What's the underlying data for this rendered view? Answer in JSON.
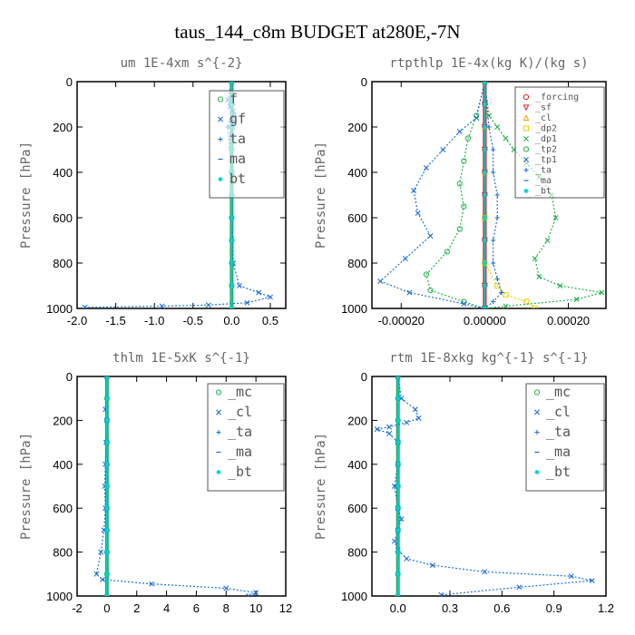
{
  "figure": {
    "title": "taus_144_c8m  BUDGET at280E,-7N",
    "colors": {
      "frame": "#000000",
      "axis_text": "#666666",
      "legend_border": "#555555",
      "green": "#22b14c",
      "blue": "#1f6fd6",
      "cyan": "#00d4d4",
      "black": "#000000",
      "red": "#e02020",
      "orange": "#f0a000",
      "yellow": "#e8d000"
    }
  },
  "chart_data": [
    {
      "type": "line",
      "title": "um  1E-4xm s^{-2}",
      "ylabel": "Pressure [hPa]",
      "xlim": [
        -2,
        0.7
      ],
      "ylim": [
        1000,
        0
      ],
      "xticks": [
        -2,
        -1.5,
        -1,
        -0.5,
        0,
        0.5
      ],
      "xtick_labels": [
        "-2.0",
        "-1.5",
        "-1.0",
        "-0.5",
        "0.0",
        "0.5"
      ],
      "yticks": [
        0,
        200,
        400,
        600,
        800,
        1000
      ],
      "ytick_labels": [
        "0",
        "200",
        "400",
        "600",
        "800",
        "1000"
      ],
      "legend": [
        "_f",
        "_gf",
        "_ta",
        "_ma",
        "_bt"
      ],
      "legend_display": [
        "f",
        "gf",
        "ta",
        "ma",
        "bt"
      ],
      "legend_placement": "top-right",
      "series": [
        {
          "name": "_f",
          "color": "green",
          "marker": "o",
          "x": [
            0,
            0,
            0,
            0,
            0,
            0,
            0,
            0,
            0,
            0,
            0
          ],
          "y": [
            0,
            100,
            200,
            300,
            400,
            500,
            600,
            700,
            800,
            900,
            1000
          ]
        },
        {
          "name": "_gf",
          "color": "blue",
          "marker": "x",
          "x": [
            0,
            -0.05,
            -0.02,
            0.02,
            0.03,
            0.02,
            0.01,
            0,
            0,
            0.02,
            0.1,
            0.35,
            0.5,
            0.2,
            -0.3,
            -0.9,
            -1.9
          ],
          "y": [
            0,
            80,
            110,
            130,
            150,
            175,
            200,
            240,
            400,
            800,
            900,
            930,
            950,
            975,
            985,
            990,
            995
          ]
        },
        {
          "name": "_ta",
          "color": "blue",
          "marker": "+",
          "x": [
            0,
            0.02,
            -0.05,
            0,
            0,
            0,
            0
          ],
          "y": [
            0,
            100,
            200,
            400,
            600,
            800,
            1000
          ]
        },
        {
          "name": "_ma",
          "color": "blue",
          "marker": "-",
          "x": [
            0,
            0,
            0,
            0,
            0,
            0
          ],
          "y": [
            0,
            200,
            400,
            600,
            800,
            1000
          ]
        },
        {
          "name": "_bt",
          "color": "cyan",
          "marker": "*",
          "x": [
            0,
            0,
            0,
            0,
            0,
            0,
            0,
            0,
            0,
            0,
            0
          ],
          "y": [
            0,
            100,
            200,
            300,
            400,
            500,
            600,
            700,
            800,
            900,
            1000
          ]
        }
      ]
    },
    {
      "type": "line",
      "title": "rtpthlp  1E-4x(kg K)/(kg s)",
      "ylabel": "Pressure [hPa]",
      "xlim": [
        -0.00027,
        0.00029
      ],
      "ylim": [
        1000,
        0
      ],
      "xticks": [
        -0.0002,
        0,
        0.0002
      ],
      "xtick_labels": [
        "-0.00020",
        "0.00000",
        "0.00020"
      ],
      "yticks": [
        0,
        200,
        400,
        600,
        800,
        1000
      ],
      "ytick_labels": [
        "0",
        "200",
        "400",
        "600",
        "800",
        "1000"
      ],
      "legend": [
        "_forcing",
        "_sf",
        "_cl",
        "_dp2",
        "_dp1",
        "_tp2",
        "_tp1",
        "_ta",
        "_ma",
        "_bt"
      ],
      "legend_placement": "top-right",
      "series": [
        {
          "name": "_forcing",
          "color": "red",
          "marker": "o",
          "x": [
            0,
            0,
            0,
            0,
            0,
            0,
            0,
            0,
            0,
            0,
            0
          ],
          "y": [
            0,
            100,
            200,
            300,
            400,
            500,
            600,
            700,
            800,
            900,
            1000
          ]
        },
        {
          "name": "_sf",
          "color": "red",
          "marker": "v",
          "x": [
            0,
            0,
            0,
            0,
            0,
            0,
            0,
            0,
            0,
            0,
            0
          ],
          "y": [
            0,
            100,
            200,
            300,
            400,
            500,
            600,
            700,
            800,
            900,
            1000
          ]
        },
        {
          "name": "_cl",
          "color": "orange",
          "marker": "^",
          "x": [
            0,
            0,
            0,
            0,
            0,
            0
          ],
          "y": [
            0,
            200,
            400,
            600,
            800,
            1000
          ]
        },
        {
          "name": "_dp2",
          "color": "yellow",
          "marker": "s",
          "x": [
            0,
            0,
            0,
            3e-05,
            5e-05,
            0.0001,
            0.00012
          ],
          "y": [
            0,
            600,
            800,
            900,
            940,
            970,
            1000
          ]
        },
        {
          "name": "_dp1",
          "color": "green",
          "marker": "x",
          "x": [
            0,
            1e-05,
            3e-05,
            5e-05,
            7e-05,
            0.0001,
            0.00013,
            0.00016,
            0.00017,
            0.00015,
            0.00012,
            0.00013,
            0.00018,
            0.00028,
            0.00022,
            5e-05,
            0
          ],
          "y": [
            0,
            150,
            200,
            250,
            300,
            360,
            420,
            500,
            600,
            700,
            780,
            860,
            900,
            930,
            960,
            990,
            1000
          ]
        },
        {
          "name": "_tp2",
          "color": "green",
          "marker": "o",
          "x": [
            0,
            -2e-05,
            -4e-05,
            -5e-05,
            -6e-05,
            -5e-05,
            -6e-05,
            -9e-05,
            -0.00014,
            -0.00013,
            -5e-05,
            0
          ],
          "y": [
            0,
            150,
            250,
            350,
            450,
            550,
            650,
            750,
            850,
            920,
            970,
            1000
          ]
        },
        {
          "name": "_tp1",
          "color": "blue",
          "marker": "x",
          "x": [
            0,
            -2e-05,
            -6e-05,
            -0.0001,
            -0.00014,
            -0.00017,
            -0.00016,
            -0.00013,
            -0.00019,
            -0.00025,
            -0.00018,
            -5e-05,
            0
          ],
          "y": [
            0,
            160,
            220,
            300,
            380,
            480,
            580,
            680,
            780,
            880,
            930,
            980,
            1000
          ]
        },
        {
          "name": "_ta",
          "color": "blue",
          "marker": "+",
          "x": [
            0,
            1e-05,
            2e-05,
            2e-05,
            3e-05,
            3e-05,
            2e-05,
            2e-05,
            3e-05,
            4e-05,
            2e-05,
            0
          ],
          "y": [
            0,
            200,
            300,
            400,
            500,
            600,
            700,
            800,
            870,
            930,
            970,
            1000
          ]
        },
        {
          "name": "_ma",
          "color": "blue",
          "marker": "-",
          "x": [
            0,
            0,
            0,
            0,
            0,
            0
          ],
          "y": [
            0,
            200,
            400,
            600,
            800,
            1000
          ]
        },
        {
          "name": "_bt",
          "color": "cyan",
          "marker": "*",
          "x": [
            0,
            0,
            0,
            0,
            0,
            0,
            0,
            0,
            0,
            0,
            0
          ],
          "y": [
            0,
            100,
            200,
            300,
            400,
            500,
            600,
            700,
            800,
            900,
            1000
          ]
        }
      ]
    },
    {
      "type": "line",
      "title": "thlm  1E-5xK s^{-1}",
      "ylabel": "Pressure [hPa]",
      "xlim": [
        -2,
        12
      ],
      "ylim": [
        1000,
        0
      ],
      "xticks": [
        -2,
        0,
        2,
        4,
        6,
        8,
        10,
        12
      ],
      "xtick_labels": [
        "-2",
        "0",
        "2",
        "4",
        "6",
        "8",
        "10",
        "12"
      ],
      "yticks": [
        0,
        200,
        400,
        600,
        800,
        1000
      ],
      "ytick_labels": [
        "0",
        "200",
        "400",
        "600",
        "800",
        "1000"
      ],
      "legend": [
        "_mc",
        "_cl",
        "_ta",
        "_ma",
        "_bt"
      ],
      "legend_placement": "top-right",
      "series": [
        {
          "name": "_mc",
          "color": "green",
          "marker": "o",
          "x": [
            0,
            0,
            0,
            0,
            0,
            0,
            0,
            0,
            0,
            0,
            0
          ],
          "y": [
            0,
            100,
            200,
            300,
            400,
            500,
            600,
            700,
            800,
            900,
            1000
          ]
        },
        {
          "name": "_cl",
          "color": "blue",
          "marker": "x",
          "x": [
            0,
            -0.1,
            0,
            -0.05,
            -0.1,
            -0.15,
            -0.1,
            -0.2,
            -0.4,
            -0.7,
            -0.3,
            3,
            8,
            10,
            9.5
          ],
          "y": [
            0,
            150,
            200,
            300,
            400,
            500,
            600,
            700,
            800,
            900,
            925,
            945,
            965,
            985,
            1000
          ]
        },
        {
          "name": "_ta",
          "color": "blue",
          "marker": "+",
          "x": [
            0,
            0,
            0,
            0,
            0,
            0
          ],
          "y": [
            0,
            200,
            400,
            600,
            800,
            1000
          ]
        },
        {
          "name": "_ma",
          "color": "blue",
          "marker": "-",
          "x": [
            0,
            0,
            0,
            0,
            0,
            0
          ],
          "y": [
            0,
            200,
            400,
            600,
            800,
            1000
          ]
        },
        {
          "name": "_bt",
          "color": "cyan",
          "marker": "*",
          "x": [
            0,
            0,
            0,
            0,
            0,
            0,
            0,
            0,
            0,
            0,
            0
          ],
          "y": [
            0,
            100,
            200,
            300,
            400,
            500,
            600,
            700,
            800,
            900,
            1000
          ]
        }
      ]
    },
    {
      "type": "line",
      "title": "rtm  1E-8xkg kg^{-1} s^{-1}",
      "ylabel": "Pressure [hPa]",
      "xlim": [
        -0.15,
        1.2
      ],
      "ylim": [
        1000,
        0
      ],
      "xticks": [
        0,
        0.3,
        0.6,
        0.9,
        1.2
      ],
      "xtick_labels": [
        "0.0",
        "0.3",
        "0.6",
        "0.9",
        "1.2"
      ],
      "yticks": [
        0,
        200,
        400,
        600,
        800,
        1000
      ],
      "ytick_labels": [
        "0",
        "200",
        "400",
        "600",
        "800",
        "1000"
      ],
      "legend": [
        "_mc",
        "_cl",
        "_ta",
        "_ma",
        "_bt"
      ],
      "legend_placement": "top-right",
      "series": [
        {
          "name": "_mc",
          "color": "green",
          "marker": "o",
          "x": [
            0,
            0,
            0,
            0,
            0,
            0,
            0,
            0,
            0,
            0,
            0
          ],
          "y": [
            0,
            100,
            200,
            300,
            400,
            500,
            600,
            700,
            800,
            900,
            1000
          ]
        },
        {
          "name": "_cl",
          "color": "blue",
          "marker": "x",
          "x": [
            0,
            0.02,
            0.1,
            0.12,
            0.05,
            -0.05,
            -0.12,
            -0.05,
            0,
            0,
            -0.02,
            0,
            0.02,
            0,
            -0.02,
            0,
            0.05,
            0.2,
            0.5,
            1.0,
            1.12,
            0.7,
            0.25
          ],
          "y": [
            0,
            100,
            150,
            190,
            210,
            230,
            240,
            260,
            300,
            400,
            500,
            600,
            650,
            700,
            750,
            790,
            830,
            860,
            890,
            910,
            930,
            960,
            995
          ]
        },
        {
          "name": "_ta",
          "color": "blue",
          "marker": "+",
          "x": [
            0,
            0,
            0,
            0,
            0,
            0
          ],
          "y": [
            0,
            200,
            400,
            600,
            800,
            1000
          ]
        },
        {
          "name": "_ma",
          "color": "blue",
          "marker": "-",
          "x": [
            0,
            0,
            0,
            0,
            0,
            0
          ],
          "y": [
            0,
            200,
            400,
            600,
            800,
            1000
          ]
        },
        {
          "name": "_bt",
          "color": "cyan",
          "marker": "*",
          "x": [
            0,
            0,
            0,
            0,
            0,
            0,
            0,
            0,
            0,
            0,
            0
          ],
          "y": [
            0,
            100,
            200,
            300,
            400,
            500,
            600,
            700,
            800,
            900,
            1000
          ]
        }
      ]
    }
  ]
}
